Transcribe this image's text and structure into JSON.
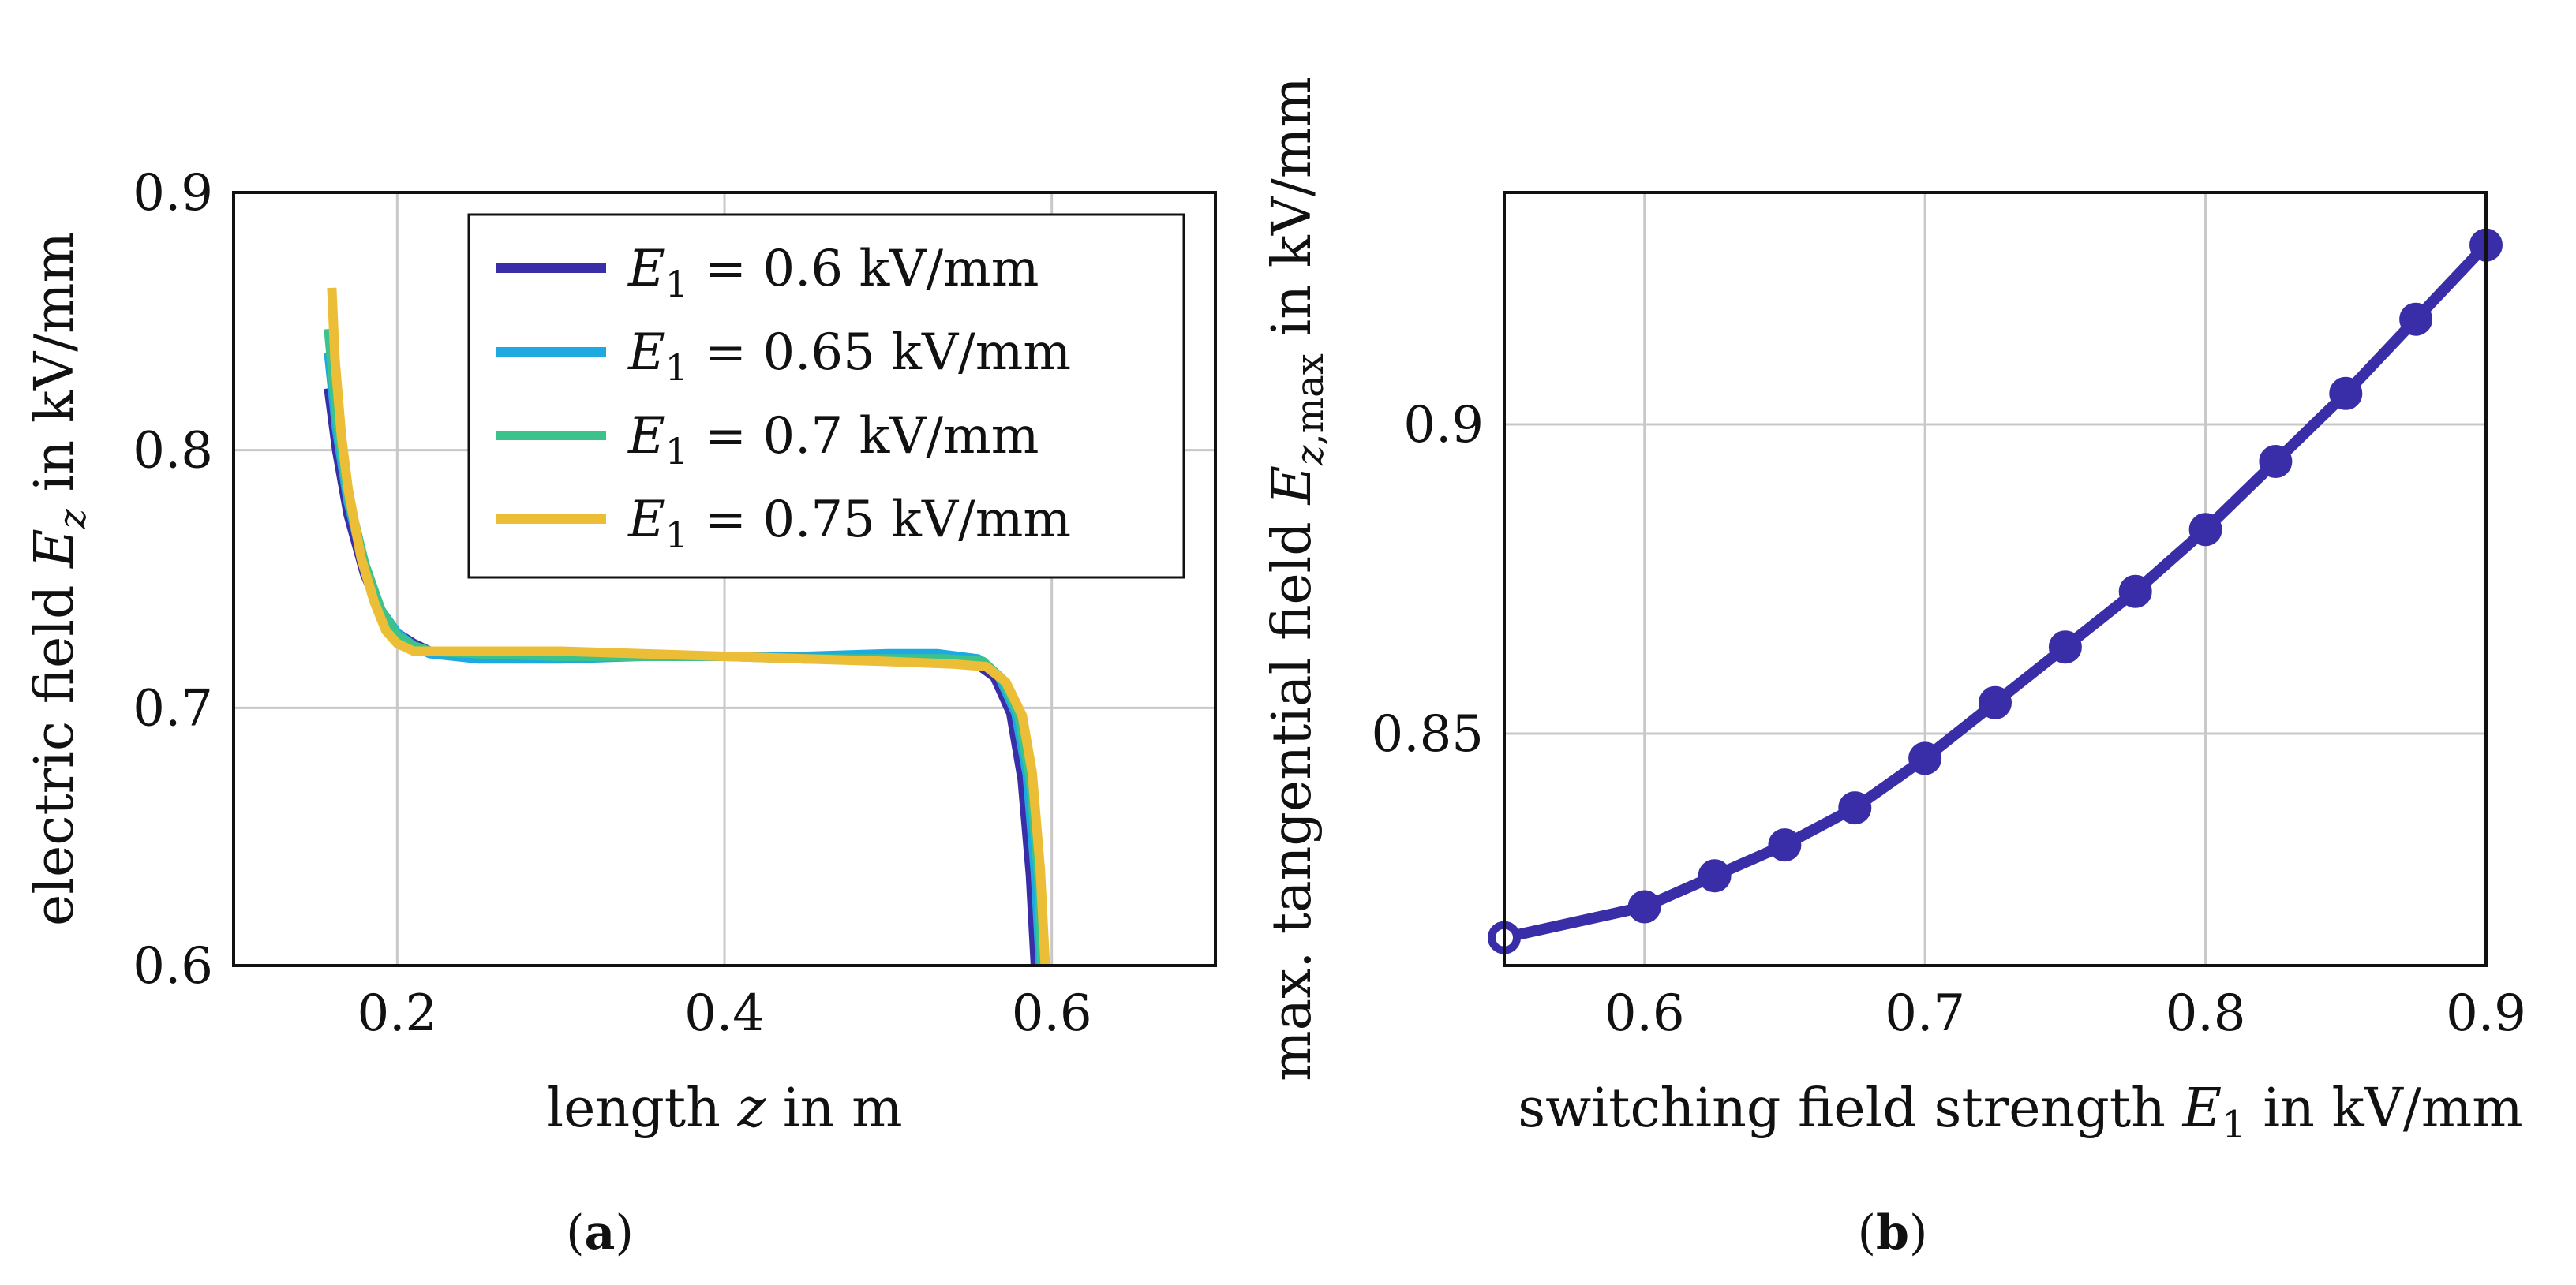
{
  "chart_data": [
    {
      "type": "line",
      "caption": "(a)",
      "xlabel": "length z in m",
      "ylabel": "electric field E_z in kV/mm",
      "xlim": [
        0.1,
        0.7
      ],
      "ylim": [
        0.6,
        0.9
      ],
      "xticks": [
        "0.2",
        "0.4",
        "0.6"
      ],
      "xtick_values": [
        0.2,
        0.4,
        0.6
      ],
      "yticks": [
        "0.6",
        "0.7",
        "0.8",
        "0.9"
      ],
      "ytick_values": [
        0.6,
        0.7,
        0.8,
        0.9
      ],
      "grid": true,
      "legend_position": "top-right",
      "series": [
        {
          "name": "E1 = 0.6 kV/mm",
          "legend_label": "= 0.6 kV/mm",
          "color": "#3a2ea8",
          "x": [
            0.158,
            0.163,
            0.17,
            0.18,
            0.19,
            0.2,
            0.21,
            0.22,
            0.25,
            0.3,
            0.35,
            0.4,
            0.45,
            0.5,
            0.53,
            0.55,
            0.565,
            0.575,
            0.582,
            0.587,
            0.59
          ],
          "y": [
            0.824,
            0.8,
            0.775,
            0.752,
            0.737,
            0.729,
            0.725,
            0.722,
            0.72,
            0.72,
            0.72,
            0.72,
            0.72,
            0.72,
            0.72,
            0.719,
            0.712,
            0.698,
            0.672,
            0.635,
            0.6
          ]
        },
        {
          "name": "E1 = 0.65 kV/mm",
          "legend_label": "= 0.65 kV/mm",
          "color": "#1ea9e0",
          "x": [
            0.158,
            0.163,
            0.17,
            0.18,
            0.19,
            0.2,
            0.21,
            0.22,
            0.25,
            0.3,
            0.35,
            0.4,
            0.45,
            0.5,
            0.53,
            0.555,
            0.568,
            0.578,
            0.585,
            0.59,
            0.593
          ],
          "y": [
            0.838,
            0.808,
            0.78,
            0.755,
            0.738,
            0.729,
            0.724,
            0.721,
            0.719,
            0.719,
            0.72,
            0.72,
            0.72,
            0.721,
            0.721,
            0.719,
            0.712,
            0.698,
            0.674,
            0.636,
            0.6
          ]
        },
        {
          "name": "E1 = 0.7 kV/mm",
          "legend_label": "= 0.7 kV/mm",
          "color": "#3cc38c",
          "x": [
            0.158,
            0.163,
            0.17,
            0.18,
            0.19,
            0.2,
            0.21,
            0.22,
            0.25,
            0.3,
            0.35,
            0.4,
            0.45,
            0.5,
            0.535,
            0.558,
            0.57,
            0.58,
            0.587,
            0.592,
            0.594
          ],
          "y": [
            0.847,
            0.813,
            0.782,
            0.756,
            0.738,
            0.728,
            0.724,
            0.722,
            0.721,
            0.72,
            0.72,
            0.72,
            0.719,
            0.719,
            0.719,
            0.718,
            0.711,
            0.697,
            0.672,
            0.635,
            0.6
          ]
        },
        {
          "name": "E1 = 0.75 kV/mm",
          "legend_label": "= 0.75 kV/mm",
          "color": "#ecbd37",
          "x": [
            0.16,
            0.162,
            0.166,
            0.17,
            0.178,
            0.186,
            0.193,
            0.2,
            0.21,
            0.22,
            0.25,
            0.3,
            0.35,
            0.4,
            0.45,
            0.5,
            0.54,
            0.56,
            0.572,
            0.582,
            0.588,
            0.593,
            0.596
          ],
          "y": [
            0.863,
            0.835,
            0.805,
            0.785,
            0.758,
            0.741,
            0.73,
            0.725,
            0.722,
            0.722,
            0.722,
            0.722,
            0.721,
            0.72,
            0.719,
            0.718,
            0.717,
            0.716,
            0.71,
            0.697,
            0.675,
            0.637,
            0.6
          ]
        }
      ]
    },
    {
      "type": "line",
      "caption": "(b)",
      "xlabel": "switching field strength E_1 in kV/mm",
      "ylabel": "max. tangential field E_z,max in kV/mm",
      "xlim": [
        0.55,
        0.9
      ],
      "ylim": [
        0.8125,
        0.9375
      ],
      "xticks": [
        "0.6",
        "0.7",
        "0.8",
        "0.9"
      ],
      "xtick_values": [
        0.6,
        0.7,
        0.8,
        0.9
      ],
      "yticks": [
        "0.85",
        "0.9"
      ],
      "ytick_values": [
        0.85,
        0.9
      ],
      "grid": true,
      "series": [
        {
          "name": "max. tangential field",
          "color": "#3a2ea8",
          "markers": "circle",
          "x": [
            0.55,
            0.6,
            0.625,
            0.65,
            0.675,
            0.7,
            0.725,
            0.75,
            0.775,
            0.8,
            0.825,
            0.85,
            0.875,
            0.9
          ],
          "y": [
            0.817,
            0.822,
            0.827,
            0.832,
            0.838,
            0.846,
            0.855,
            0.864,
            0.873,
            0.883,
            0.894,
            0.905,
            0.917,
            0.929
          ]
        }
      ]
    }
  ]
}
